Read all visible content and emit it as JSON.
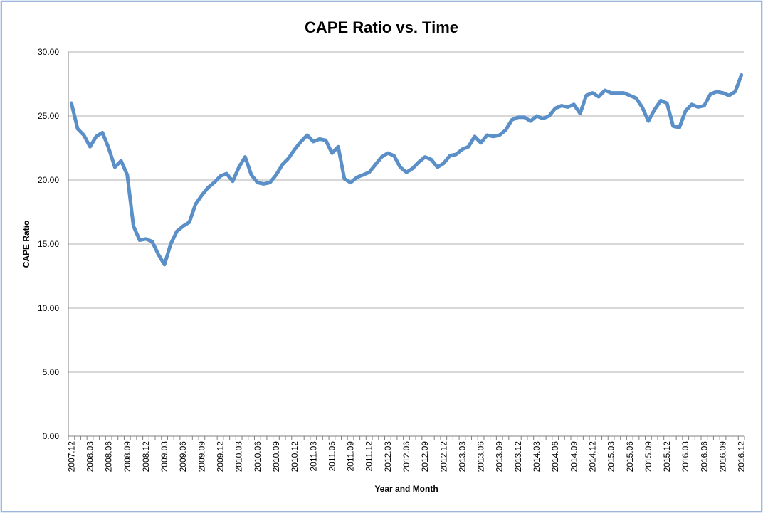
{
  "chart_data": {
    "type": "line",
    "title": "CAPE Ratio vs. Time",
    "xlabel": "Year and Month",
    "ylabel": "CAPE Ratio",
    "ylim": [
      0,
      30
    ],
    "yticks": [
      "0.00",
      "5.00",
      "10.00",
      "15.00",
      "20.00",
      "25.00",
      "30.00"
    ],
    "grid": true,
    "legend": "none",
    "line_color": "#5b8fc7",
    "x_tick_labels": [
      "2007.12",
      "2008.03",
      "2008.06",
      "2008.09",
      "2008.12",
      "2009.03",
      "2009.06",
      "2009.09",
      "2009.12",
      "2010.03",
      "2010.06",
      "2010.09",
      "2010.12",
      "2011.03",
      "2011.06",
      "2011.09",
      "2011.12",
      "2012.03",
      "2012.06",
      "2012.09",
      "2012.12",
      "2013.03",
      "2013.06",
      "2013.09",
      "2013.12",
      "2014.03",
      "2014.06",
      "2014.09",
      "2014.12",
      "2015.03",
      "2015.06",
      "2015.09",
      "2015.12",
      "2016.03",
      "2016.06",
      "2016.09",
      "2016.12"
    ],
    "series": [
      {
        "values": [
          26.0,
          24.0,
          23.5,
          22.6,
          23.4,
          23.7,
          22.5,
          21.0,
          21.5,
          20.4,
          16.4,
          15.3,
          15.4,
          15.2,
          14.2,
          13.4,
          15.0,
          16.0,
          16.4,
          16.7,
          18.1,
          18.8,
          19.4,
          19.8,
          20.3,
          20.5,
          19.9,
          21.0,
          21.8,
          20.4,
          19.8,
          19.7,
          19.8,
          20.4,
          21.2,
          21.7,
          22.4,
          23.0,
          23.5,
          23.0,
          23.2,
          23.1,
          22.1,
          22.6,
          20.1,
          19.8,
          20.2,
          20.4,
          20.6,
          21.2,
          21.8,
          22.1,
          21.9,
          21.0,
          20.6,
          20.9,
          21.4,
          21.8,
          21.6,
          21.0,
          21.3,
          21.9,
          22.0,
          22.4,
          22.6,
          23.4,
          22.9,
          23.5,
          23.4,
          23.5,
          23.9,
          24.7,
          24.9,
          24.9,
          24.6,
          25.0,
          24.8,
          25.0,
          25.6,
          25.8,
          25.7,
          25.9,
          25.2,
          26.6,
          26.8,
          26.5,
          27.0,
          26.8,
          26.8,
          26.8,
          26.6,
          26.4,
          25.7,
          24.6,
          25.5,
          26.2,
          26.0,
          24.2,
          24.1,
          25.4,
          25.9,
          25.7,
          25.8,
          26.7,
          26.9,
          26.8,
          26.6,
          26.9,
          28.2
        ]
      }
    ]
  }
}
